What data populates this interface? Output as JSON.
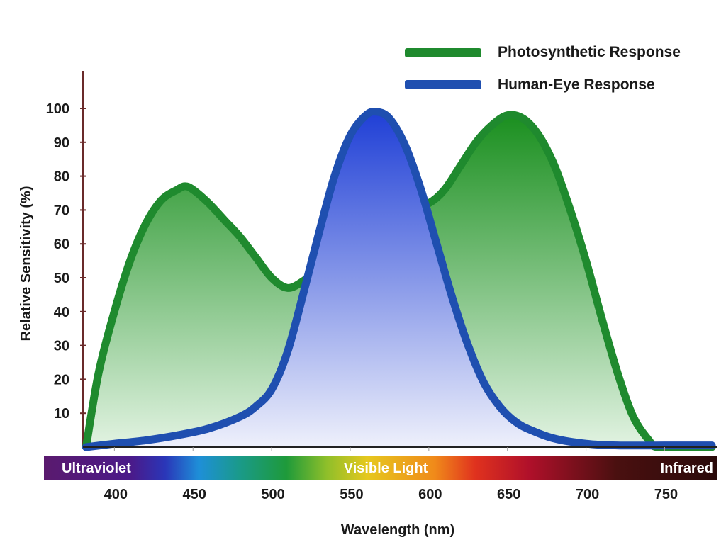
{
  "chart_data": {
    "type": "area",
    "xlabel": "Wavelength (nm)",
    "ylabel": "Relative Sensitivity (%)",
    "xlim": [
      380,
      780
    ],
    "ylim": [
      0,
      100
    ],
    "x_ticks": [
      400,
      450,
      500,
      550,
      600,
      650,
      700,
      750
    ],
    "y_ticks": [
      10,
      20,
      30,
      40,
      50,
      60,
      70,
      80,
      90,
      100
    ],
    "legend_position": "top-right",
    "series": [
      {
        "name": "Photosynthetic Response",
        "color": "#1f8a2e",
        "x": [
          382,
          390,
          400,
          410,
          420,
          430,
          440,
          445,
          450,
          460,
          470,
          480,
          490,
          500,
          510,
          520,
          530,
          540,
          550,
          560,
          570,
          580,
          590,
          600,
          610,
          620,
          630,
          640,
          650,
          660,
          670,
          680,
          690,
          700,
          710,
          720,
          730,
          740,
          745,
          760,
          780
        ],
        "y": [
          0,
          22,
          40,
          55,
          66,
          73,
          76,
          77,
          76,
          72,
          67,
          62,
          56,
          50,
          47,
          49,
          53,
          58,
          62,
          65,
          67,
          69,
          71,
          72,
          76,
          83,
          90,
          95,
          98,
          97,
          92,
          83,
          70,
          55,
          38,
          22,
          9,
          2,
          0,
          0,
          0
        ]
      },
      {
        "name": "Human-Eye Response",
        "color": "#1f4fb0",
        "x": [
          382,
          400,
          420,
          440,
          460,
          480,
          490,
          500,
          510,
          520,
          530,
          540,
          550,
          560,
          567,
          575,
          585,
          595,
          605,
          615,
          625,
          635,
          645,
          655,
          665,
          680,
          700,
          720,
          750,
          780
        ],
        "y": [
          0,
          1,
          2,
          3.5,
          5.5,
          9,
          12,
          17,
          28,
          45,
          63,
          80,
          92,
          98,
          99,
          97,
          89,
          76,
          60,
          44,
          30,
          19,
          12,
          7.5,
          5,
          2.5,
          1,
          0.5,
          0.5,
          0.5
        ]
      }
    ],
    "spectrum_bar": {
      "labels": [
        "Ultraviolet",
        "Visible Light",
        "Infrared"
      ]
    }
  }
}
